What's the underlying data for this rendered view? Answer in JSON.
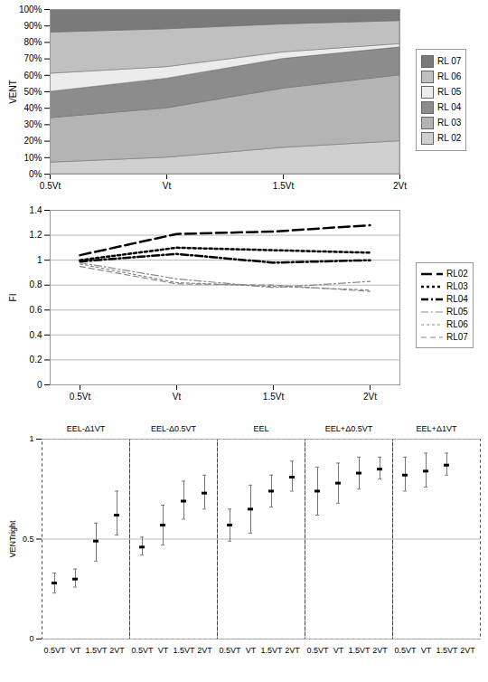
{
  "chart_data": [
    {
      "type": "area",
      "stacked": true,
      "x": [
        "0.5Vt",
        "Vt",
        "1.5Vt",
        "2Vt"
      ],
      "y_label": "VENT",
      "ylim": [
        0,
        100
      ],
      "yticks": [
        {
          "value": 0,
          "label": "0%"
        },
        {
          "value": 10,
          "label": "10%"
        },
        {
          "value": 20,
          "label": "20%"
        },
        {
          "value": 30,
          "label": "30%"
        },
        {
          "value": 40,
          "label": "40%"
        },
        {
          "value": 50,
          "label": "50%"
        },
        {
          "value": 60,
          "label": "60%"
        },
        {
          "value": 70,
          "label": "70%"
        },
        {
          "value": 80,
          "label": "80%"
        },
        {
          "value": 90,
          "label": "90%"
        },
        {
          "value": 100,
          "label": "100%"
        }
      ],
      "legend": "right",
      "series": [
        {
          "name": "RL 02",
          "color": "#d0d0d0",
          "values": [
            7,
            10,
            16,
            20
          ]
        },
        {
          "name": "RL 03",
          "color": "#b4b4b4",
          "values": [
            27,
            30,
            36,
            40
          ]
        },
        {
          "name": "RL 04",
          "color": "#8c8c8c",
          "values": [
            16,
            18,
            18,
            17
          ]
        },
        {
          "name": "RL 05",
          "color": "#ececec",
          "values": [
            11,
            7,
            4,
            2
          ]
        },
        {
          "name": "RL 06",
          "color": "#c0c0c0",
          "values": [
            25,
            23,
            17,
            14
          ]
        },
        {
          "name": "RL 07",
          "color": "#7a7a7a",
          "values": [
            14,
            12,
            9,
            7
          ]
        }
      ]
    },
    {
      "type": "line",
      "x": [
        "0.5Vt",
        "Vt",
        "1.5Vt",
        "2Vt"
      ],
      "y_label": "FI",
      "ylim": [
        0,
        1.4
      ],
      "yticks": [
        0,
        0.2,
        0.4,
        0.6,
        0.8,
        1,
        1.2,
        1.4
      ],
      "grid": true,
      "legend": "right",
      "series": [
        {
          "name": "RL02",
          "color": "#000000",
          "line_style": "longdash",
          "values": [
            1.04,
            1.21,
            1.23,
            1.28
          ]
        },
        {
          "name": "RL03",
          "color": "#000000",
          "line_style": "dotted",
          "values": [
            1.0,
            1.1,
            1.08,
            1.06
          ]
        },
        {
          "name": "RL04",
          "color": "#000000",
          "line_style": "dashdot",
          "values": [
            0.99,
            1.05,
            0.98,
            1.0
          ]
        },
        {
          "name": "RL05",
          "color": "#888888",
          "line_style": "dashdot",
          "values": [
            0.98,
            0.85,
            0.78,
            0.83
          ]
        },
        {
          "name": "RL06",
          "color": "#888888",
          "line_style": "dotted",
          "values": [
            0.97,
            0.82,
            0.79,
            0.76
          ]
        },
        {
          "name": "RL07",
          "color": "#888888",
          "line_style": "dashed",
          "values": [
            0.95,
            0.81,
            0.8,
            0.75
          ]
        }
      ]
    },
    {
      "type": "errorbar",
      "y_label": "VENTright",
      "ylim": [
        0,
        1
      ],
      "yticks": [
        0,
        0.5,
        1
      ],
      "grid": true,
      "groups": [
        {
          "name": "EEL-Δ1VT",
          "categories": [
            "0.5VT",
            "VT",
            "1.5VT",
            "2VT"
          ],
          "values": [
            0.28,
            0.3,
            0.49,
            0.62
          ],
          "lower": [
            0.23,
            0.26,
            0.39,
            0.52
          ],
          "upper": [
            0.33,
            0.35,
            0.58,
            0.74
          ]
        },
        {
          "name": "EEL-Δ0.5VT",
          "categories": [
            "0.5VT",
            "VT",
            "1.5VT",
            "2VT"
          ],
          "values": [
            0.46,
            0.57,
            0.69,
            0.73
          ],
          "lower": [
            0.42,
            0.47,
            0.6,
            0.65
          ],
          "upper": [
            0.51,
            0.67,
            0.79,
            0.82
          ]
        },
        {
          "name": "EEL",
          "categories": [
            "0.5VT",
            "VT",
            "1.5VT",
            "2VT"
          ],
          "values": [
            0.57,
            0.65,
            0.74,
            0.81
          ],
          "lower": [
            0.49,
            0.53,
            0.66,
            0.74
          ],
          "upper": [
            0.65,
            0.77,
            0.82,
            0.89
          ]
        },
        {
          "name": "EEL+Δ0.5VT",
          "categories": [
            "0.5VT",
            "VT",
            "1.5VT",
            "2VT"
          ],
          "values": [
            0.74,
            0.78,
            0.83,
            0.85
          ],
          "lower": [
            0.62,
            0.68,
            0.75,
            0.8
          ],
          "upper": [
            0.86,
            0.88,
            0.91,
            0.91
          ]
        },
        {
          "name": "EEL+Δ1VT",
          "categories": [
            "0.5VT",
            "VT",
            "1.5VT"
          ],
          "values": [
            0.82,
            0.84,
            0.87
          ],
          "lower": [
            0.74,
            0.76,
            0.82
          ],
          "upper": [
            0.91,
            0.93,
            0.93
          ]
        }
      ]
    }
  ]
}
